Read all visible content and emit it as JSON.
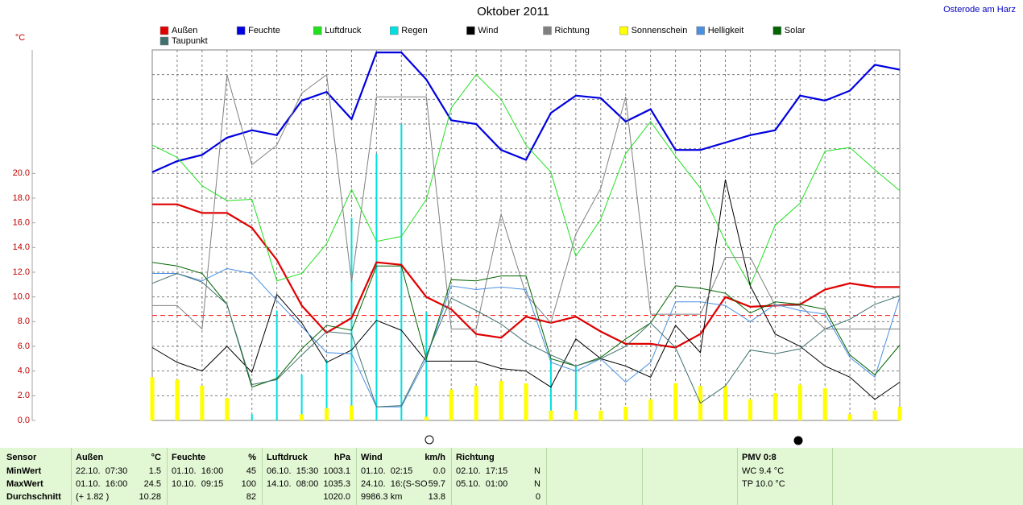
{
  "chart_data": {
    "type": "line",
    "title": "Oktober 2011",
    "subtitle": "Osterode am Harz",
    "y_label": "°C",
    "ylim": [
      0,
      30
    ],
    "yticks": [
      {
        "value": 0,
        "label": "0.0"
      },
      {
        "value": 2,
        "label": "2.0"
      },
      {
        "value": 4,
        "label": "4.0"
      },
      {
        "value": 6,
        "label": "6.0"
      },
      {
        "value": 8,
        "label": "8.0"
      },
      {
        "value": 10,
        "label": "10.0"
      },
      {
        "value": 12,
        "label": "12.0"
      },
      {
        "value": 14,
        "label": "14.0"
      },
      {
        "value": 16,
        "label": "16.0"
      },
      {
        "value": 18,
        "label": "18.0"
      },
      {
        "value": 20,
        "label": "20.0"
      }
    ],
    "ygrid": [
      22,
      24,
      26,
      28
    ],
    "grid": true,
    "mean_line": {
      "value": 8.5,
      "color": "#ff0000"
    },
    "series": [
      {
        "name": "Außen",
        "color": "#e00000",
        "style": "bold",
        "values": [
          17.5,
          17.5,
          16.8,
          16.8,
          15.6,
          13.0,
          9.3,
          7.1,
          8.3,
          12.8,
          12.6,
          10.0,
          9.0,
          7.0,
          6.7,
          8.4,
          7.9,
          8.4,
          7.2,
          6.2,
          6.2,
          5.9,
          7.0,
          10.0,
          9.2,
          9.3,
          9.4,
          10.6,
          11.1,
          10.8,
          10.8
        ]
      },
      {
        "name": "Feuchte",
        "color": "#0000e0",
        "style": "bold",
        "values": [
          20.1,
          21.0,
          21.5,
          22.9,
          23.5,
          23.1,
          25.9,
          26.6,
          24.4,
          29.8,
          29.8,
          27.6,
          24.3,
          24.0,
          21.9,
          21.1,
          24.9,
          26.3,
          26.1,
          24.2,
          25.2,
          21.9,
          21.9,
          22.5,
          23.1,
          23.5,
          26.3,
          25.9,
          26.7,
          28.8,
          28.4
        ]
      },
      {
        "name": "Luftdruck",
        "color": "#20e020",
        "style": "line",
        "values": [
          22.3,
          21.3,
          19.0,
          17.8,
          17.9,
          11.3,
          11.9,
          14.3,
          18.7,
          14.5,
          14.9,
          17.9,
          25.3,
          28.0,
          26.0,
          22.3,
          20.1,
          13.3,
          16.3,
          21.6,
          24.2,
          21.4,
          18.8,
          14.5,
          10.9,
          15.8,
          17.6,
          21.8,
          22.1,
          20.3,
          18.6
        ]
      },
      {
        "name": "Regen",
        "color": "#00e0e0",
        "style": "needle",
        "values": [
          0,
          0,
          0,
          0,
          0.5,
          8.9,
          3.7,
          4.9,
          16.4,
          21.6,
          24.0,
          8.8,
          0,
          0,
          0,
          0,
          5.0,
          4.4,
          0,
          0,
          0,
          0,
          0,
          0,
          0,
          0,
          0,
          0,
          0,
          0,
          0
        ]
      },
      {
        "name": "Wind",
        "color": "#000000",
        "style": "line",
        "values": [
          5.9,
          4.7,
          4.0,
          6.0,
          3.9,
          10.2,
          7.9,
          4.7,
          5.7,
          8.1,
          7.3,
          4.8,
          4.8,
          4.8,
          4.2,
          4.0,
          2.7,
          6.6,
          5.0,
          4.4,
          3.5,
          7.7,
          5.5,
          19.5,
          10.9,
          7.0,
          6.0,
          4.4,
          3.5,
          1.7,
          3.1
        ]
      },
      {
        "name": "Richtung",
        "color": "#808080",
        "style": "line",
        "values": [
          9.3,
          9.3,
          7.4,
          28.0,
          20.7,
          22.3,
          26.5,
          28.0,
          11.2,
          26.2,
          26.2,
          26.2,
          7.4,
          7.4,
          16.7,
          10.2,
          7.9,
          15.1,
          18.8,
          26.2,
          8.6,
          8.6,
          8.6,
          13.2,
          13.2,
          9.3,
          9.3,
          7.4,
          7.4,
          7.4,
          7.4
        ]
      },
      {
        "name": "Sonnenschein",
        "color": "#ffff00",
        "style": "bar",
        "values": [
          3.5,
          3.3,
          2.8,
          1.8,
          0,
          0,
          0.5,
          1.0,
          1.2,
          0,
          0,
          0.3,
          2.5,
          2.8,
          3.2,
          3.0,
          0.8,
          0.8,
          0.8,
          1.1,
          1.7,
          3.0,
          2.8,
          2.8,
          1.7,
          2.2,
          2.9,
          2.6,
          0.5,
          0.8,
          1.1
        ]
      },
      {
        "name": "Helligkeit",
        "color": "#4a90e0",
        "style": "line",
        "values": [
          11.9,
          11.9,
          11.3,
          12.3,
          11.9,
          9.7,
          7.6,
          5.5,
          5.4,
          1.1,
          1.1,
          5.0,
          10.9,
          10.6,
          10.8,
          10.6,
          4.7,
          4.0,
          5.0,
          3.1,
          4.7,
          9.6,
          9.6,
          9.3,
          8.0,
          9.4,
          8.9,
          8.6,
          5.1,
          3.5,
          10.0
        ]
      },
      {
        "name": "Solar",
        "color": "#006400",
        "style": "line",
        "values": [
          12.8,
          12.5,
          11.9,
          9.4,
          2.7,
          3.4,
          5.8,
          7.7,
          7.3,
          12.5,
          12.5,
          5.0,
          11.4,
          11.3,
          11.7,
          11.7,
          5.0,
          4.4,
          5.1,
          6.6,
          7.9,
          10.9,
          10.7,
          10.3,
          8.7,
          9.6,
          9.4,
          9.0,
          5.3,
          3.7,
          6.1
        ]
      },
      {
        "name": "Taupunkt",
        "color": "#407070",
        "style": "line",
        "values": [
          11.1,
          11.9,
          11.2,
          9.4,
          2.9,
          3.3,
          5.3,
          7.2,
          7.0,
          1.1,
          1.2,
          5.3,
          9.9,
          8.9,
          7.8,
          6.3,
          5.3,
          4.4,
          5.0,
          6.0,
          7.9,
          5.9,
          1.4,
          2.8,
          5.7,
          5.4,
          5.8,
          7.4,
          8.2,
          9.4,
          10.1
        ]
      }
    ]
  },
  "table": {
    "rows": [
      [
        "Sensor",
        "Außen",
        "°C",
        "Feuchte",
        "%",
        "Luftdruck",
        "hPa",
        "Wind",
        "km/h",
        "Richtung",
        null
      ],
      [
        "MinWert",
        "22.10.  07:30",
        "1.5",
        "01.10.  16:00",
        "45",
        "06.10.  15:30",
        "1003.1",
        "01.10.  02:15",
        "0.0",
        "02.10.  17:15",
        "N"
      ],
      [
        "MaxWert",
        "01.10.  16:00",
        "24.5",
        "10.10.  09:15",
        "100",
        "14.10.  08:00",
        "1035.3",
        "24.10.  16:(S-SO",
        "59.7",
        "05.10.  01:00",
        "N"
      ],
      [
        "Durchschnitt",
        "(+ 1.82 )",
        "10.28",
        null,
        "82",
        null,
        "1020.0",
        "9986.3 km",
        "13.8",
        null,
        "0"
      ]
    ],
    "pmv": [
      "PMV 0:8",
      "WC 9.4 °C",
      "TP 10.0 °C"
    ]
  }
}
